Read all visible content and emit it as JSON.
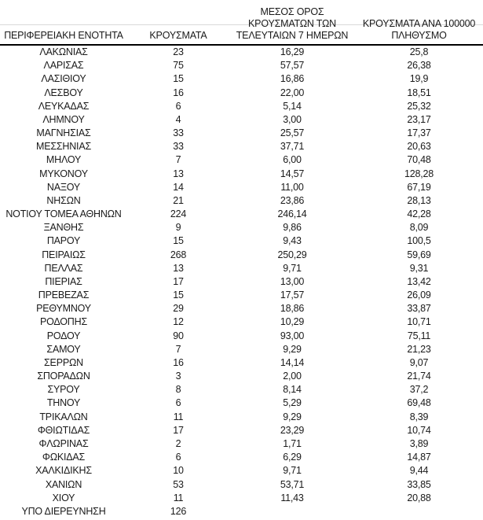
{
  "table": {
    "columns": [
      {
        "id": "region",
        "lines": [
          "ΠΕΡΙΦΕΡΕΙΑΚΗ ΕΝΟΤΗΤΑ"
        ]
      },
      {
        "id": "cases",
        "lines": [
          "ΚΡΟΥΣΜΑΤΑ"
        ]
      },
      {
        "id": "avg-7day",
        "lines": [
          "ΜΕΣΟΣ ΟΡΟΣ",
          "ΚΡΟΥΣΜΑΤΩΝ ΤΩΝ",
          "ΤΕΛΕΥΤΑΙΩΝ 7 ΗΜΕΡΩΝ"
        ]
      },
      {
        "id": "per-100k",
        "lines": [
          "ΚΡΟΥΣΜΑΤΑ ΑΝΑ 100000",
          "ΠΛΗΘΥΣΜΟ"
        ]
      }
    ],
    "rows": [
      [
        "ΛΑΚΩΝΙΑΣ",
        "23",
        "16,29",
        "25,8"
      ],
      [
        "ΛΑΡΙΣΑΣ",
        "75",
        "57,57",
        "26,38"
      ],
      [
        "ΛΑΣΙΘΙΟΥ",
        "15",
        "16,86",
        "19,9"
      ],
      [
        "ΛΕΣΒΟΥ",
        "16",
        "22,00",
        "18,51"
      ],
      [
        "ΛΕΥΚΑΔΑΣ",
        "6",
        "5,14",
        "25,32"
      ],
      [
        "ΛΗΜΝΟΥ",
        "4",
        "3,00",
        "23,17"
      ],
      [
        "ΜΑΓΝΗΣΙΑΣ",
        "33",
        "25,57",
        "17,37"
      ],
      [
        "ΜΕΣΣΗΝΙΑΣ",
        "33",
        "37,71",
        "20,63"
      ],
      [
        "ΜΗΛΟΥ",
        "7",
        "6,00",
        "70,48"
      ],
      [
        "ΜΥΚΟΝΟΥ",
        "13",
        "14,57",
        "128,28"
      ],
      [
        "ΝΑΞΟΥ",
        "14",
        "11,00",
        "67,19"
      ],
      [
        "ΝΗΣΩΝ",
        "21",
        "23,86",
        "28,13"
      ],
      [
        "ΝΟΤΙΟΥ ΤΟΜΕΑ ΑΘΗΝΩΝ",
        "224",
        "246,14",
        "42,28"
      ],
      [
        "ΞΑΝΘΗΣ",
        "9",
        "9,86",
        "8,09"
      ],
      [
        "ΠΑΡΟΥ",
        "15",
        "9,43",
        "100,5"
      ],
      [
        "ΠΕΙΡΑΙΩΣ",
        "268",
        "250,29",
        "59,69"
      ],
      [
        "ΠΕΛΛΑΣ",
        "13",
        "9,71",
        "9,31"
      ],
      [
        "ΠΙΕΡΙΑΣ",
        "17",
        "13,00",
        "13,42"
      ],
      [
        "ΠΡΕΒΕΖΑΣ",
        "15",
        "17,57",
        "26,09"
      ],
      [
        "ΡΕΘΥΜΝΟΥ",
        "29",
        "18,86",
        "33,87"
      ],
      [
        "ΡΟΔΟΠΗΣ",
        "12",
        "10,29",
        "10,71"
      ],
      [
        "ΡΟΔΟΥ",
        "90",
        "93,00",
        "75,11"
      ],
      [
        "ΣΑΜΟΥ",
        "7",
        "9,29",
        "21,23"
      ],
      [
        "ΣΕΡΡΩΝ",
        "16",
        "14,14",
        "9,07"
      ],
      [
        "ΣΠΟΡΑΔΩΝ",
        "3",
        "2,00",
        "21,74"
      ],
      [
        "ΣΥΡΟΥ",
        "8",
        "8,14",
        "37,2"
      ],
      [
        "ΤΗΝΟΥ",
        "6",
        "5,29",
        "69,48"
      ],
      [
        "ΤΡΙΚΑΛΩΝ",
        "11",
        "9,29",
        "8,39"
      ],
      [
        "ΦΘΙΩΤΙΔΑΣ",
        "17",
        "23,29",
        "10,74"
      ],
      [
        "ΦΛΩΡΙΝΑΣ",
        "2",
        "1,71",
        "3,89"
      ],
      [
        "ΦΩΚΙΔΑΣ",
        "6",
        "6,29",
        "14,87"
      ],
      [
        "ΧΑΛΚΙΔΙΚΗΣ",
        "10",
        "9,71",
        "9,44"
      ],
      [
        "ΧΑΝΙΩΝ",
        "53",
        "53,71",
        "33,85"
      ],
      [
        "ΧΙΟΥ",
        "11",
        "11,43",
        "20,88"
      ],
      [
        "ΥΠΟ ΔΙΕΡΕΥΝΗΣΗ",
        "126",
        "",
        ""
      ]
    ]
  },
  "colors": {
    "text": "#1a1a1a",
    "header_rule": "#000000",
    "faint_rule": "#d9d9d9"
  }
}
